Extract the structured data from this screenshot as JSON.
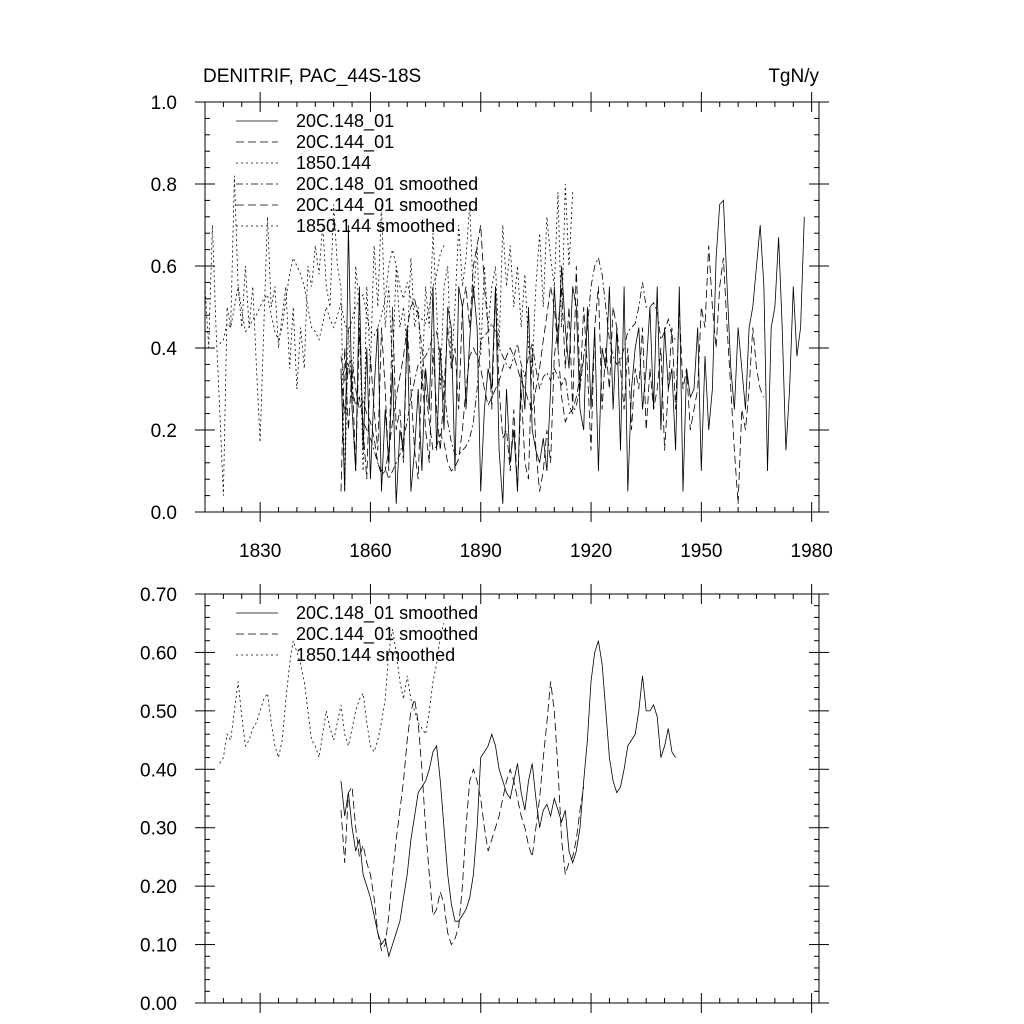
{
  "chart_data": [
    {
      "type": "line",
      "title": "DENITRIF, PAC_44S-18S",
      "units": "TgN/y",
      "xlim": [
        1815,
        1982
      ],
      "ylim": [
        0.0,
        1.0
      ],
      "x_ticks": [
        1830,
        1860,
        1890,
        1920,
        1950,
        1980
      ],
      "x_tick_labels": [
        "1830",
        "1860",
        "1890",
        "1920",
        "1950",
        "1980"
      ],
      "y_ticks": [
        0.0,
        0.2,
        0.4,
        0.6,
        0.8,
        1.0
      ],
      "y_tick_labels": [
        "0.0",
        "0.2",
        "0.4",
        "0.6",
        "0.8",
        "1.0"
      ],
      "legend": [
        "20C.148_01",
        "20C.144_01",
        "1850.144",
        "20C.148_01 smoothed",
        "20C.144_01 smoothed",
        "1850.144 smoothed"
      ],
      "series": [
        {
          "name": "20C.148_01",
          "style": "solid",
          "start_year": 1852,
          "values": [
            0.35,
            0.05,
            0.7,
            0.25,
            0.1,
            0.55,
            0.15,
            0.4,
            0.08,
            0.3,
            0.45,
            0.05,
            0.25,
            0.12,
            0.35,
            0.02,
            0.2,
            0.15,
            0.45,
            0.05,
            0.15,
            0.3,
            0.1,
            0.35,
            0.25,
            0.55,
            0.15,
            0.4,
            0.2,
            0.5,
            0.45,
            0.1,
            0.55,
            0.5,
            0.25,
            0.42,
            0.55,
            0.45,
            0.05,
            0.25,
            0.35,
            0.3,
            0.55,
            0.15,
            0.02,
            0.3,
            0.12,
            0.2,
            0.05,
            0.35,
            0.25,
            0.5,
            0.2,
            0.15,
            0.12,
            0.18,
            0.1,
            0.3,
            0.55,
            0.4,
            0.6,
            0.45,
            0.35,
            0.55,
            0.5,
            0.25,
            0.2,
            0.5,
            0.25,
            0.45,
            0.1,
            0.4,
            0.35,
            0.55,
            0.25,
            0.45,
            0.15,
            0.55,
            0.05,
            0.3,
            0.4,
            0.45,
            0.25,
            0.35,
            0.5,
            0.25,
            0.55,
            0.2,
            0.45,
            0.3,
            0.35,
            0.15,
            0.55,
            0.05,
            0.35,
            0.28,
            0.3,
            0.45,
            0.1,
            0.38,
            0.2,
            0.3,
            0.62,
            0.75,
            0.76,
            0.55,
            0.35,
            0.25,
            0.45,
            0.35,
            0.25,
            0.45,
            0.5,
            0.6,
            0.7,
            0.55,
            0.1,
            0.45,
            0.5,
            0.67,
            0.45,
            0.15,
            0.3,
            0.55,
            0.38,
            0.45,
            0.72
          ]
        },
        {
          "name": "20C.144_01",
          "style": "dashed",
          "start_year": 1852,
          "values": [
            0.05,
            0.4,
            0.2,
            0.35,
            0.1,
            0.45,
            0.2,
            0.08,
            0.38,
            0.25,
            0.15,
            0.45,
            0.3,
            0.1,
            0.5,
            0.2,
            0.25,
            0.12,
            0.45,
            0.3,
            0.15,
            0.08,
            0.35,
            0.2,
            0.12,
            0.4,
            0.25,
            0.15,
            0.3,
            0.45,
            0.35,
            0.4,
            0.25,
            0.5,
            0.55,
            0.45,
            0.6,
            0.65,
            0.7,
            0.55,
            0.45,
            0.25,
            0.55,
            0.3,
            0.18,
            0.2,
            0.1,
            0.25,
            0.05,
            0.3,
            0.12,
            0.08,
            0.4,
            0.15,
            0.05,
            0.1,
            0.2,
            0.12,
            0.38,
            0.45,
            0.55,
            0.35,
            0.5,
            0.25,
            0.6,
            0.3,
            0.5,
            0.35,
            0.15,
            0.45,
            0.55,
            0.25,
            0.4,
            0.3,
            0.5,
            0.45,
            0.35,
            0.25,
            0.4,
            0.2,
            0.35,
            0.3,
            0.45,
            0.2,
            0.35,
            0.25,
            0.3,
            0.4,
            0.15,
            0.3,
            0.45,
            0.25,
            0.5,
            0.3,
            0.35,
            0.2,
            0.25,
            0.3,
            0.5,
            0.45,
            0.65,
            0.5,
            0.4,
            0.55,
            0.62,
            0.45,
            0.3,
            0.15,
            0.02,
            0.25,
            0.2,
            0.3,
            0.45,
            0.35,
            0.3,
            0.28
          ]
        },
        {
          "name": "1850.144",
          "style": "dotted",
          "start_year": 1815,
          "values": [
            0.55,
            0.4,
            0.7,
            0.45,
            0.25,
            0.04,
            0.5,
            0.45,
            0.82,
            0.55,
            0.45,
            0.6,
            0.45,
            0.55,
            0.35,
            0.17,
            0.45,
            0.72,
            0.5,
            0.55,
            0.4,
            0.48,
            0.55,
            0.35,
            0.5,
            0.3,
            0.45,
            0.35,
            0.6,
            0.55,
            0.65,
            0.58,
            0.7,
            0.55,
            0.5,
            0.75,
            0.6,
            0.55,
            0.05,
            0.45,
            0.25,
            0.6,
            0.5,
            0.1,
            0.55,
            0.35,
            0.65,
            0.5,
            0.75,
            0.45,
            0.55,
            0.35,
            0.6,
            0.45,
            0.5,
            0.4,
            0.62,
            0.45,
            0.5,
            0.3,
            0.55,
            0.45,
            0.68,
            0.5,
            0.3,
            0.55,
            0.6,
            0.35,
            0.5,
            0.7,
            0.55,
            0.62,
            0.75,
            0.52,
            0.65,
            0.38,
            0.6,
            0.45,
            0.55,
            0.6,
            0.4,
            0.7,
            0.55,
            0.65,
            0.5,
            0.6,
            0.45,
            0.58,
            0.4,
            0.35,
            0.55,
            0.68,
            0.5,
            0.72,
            0.62,
            0.55,
            0.78,
            0.45,
            0.8,
            0.6,
            0.78
          ]
        },
        {
          "name": "20C.148_01 smoothed",
          "style": "dashdot",
          "start_year": 1852,
          "values": [
            0.38,
            0.32,
            0.36,
            0.3,
            0.26,
            0.28,
            0.22,
            0.2,
            0.18,
            0.15,
            0.12,
            0.1,
            0.11,
            0.08,
            0.1,
            0.12,
            0.14,
            0.18,
            0.22,
            0.28,
            0.32,
            0.36,
            0.37,
            0.38,
            0.4,
            0.43,
            0.44,
            0.38,
            0.3,
            0.22,
            0.17,
            0.14,
            0.14,
            0.15,
            0.16,
            0.18,
            0.22,
            0.3,
            0.42,
            0.43,
            0.44,
            0.46,
            0.44,
            0.4,
            0.38,
            0.36,
            0.35,
            0.38,
            0.41,
            0.36,
            0.33,
            0.38,
            0.41,
            0.35,
            0.3,
            0.33,
            0.34,
            0.32,
            0.35,
            0.33,
            0.31,
            0.33,
            0.26,
            0.24,
            0.26,
            0.3,
            0.38,
            0.45,
            0.55,
            0.6,
            0.62,
            0.58,
            0.5,
            0.42,
            0.38,
            0.36,
            0.37,
            0.4,
            0.44,
            0.45,
            0.46,
            0.5,
            0.56,
            0.5,
            0.5,
            0.51,
            0.49,
            0.42,
            0.44,
            0.47,
            0.43,
            0.42
          ]
        },
        {
          "name": "20C.144_01 smoothed",
          "style": "dashed",
          "start_year": 1852,
          "values": [
            0.33,
            0.24,
            0.36,
            0.37,
            0.3,
            0.25,
            0.27,
            0.24,
            0.22,
            0.18,
            0.12,
            0.09,
            0.1,
            0.15,
            0.22,
            0.28,
            0.33,
            0.38,
            0.45,
            0.5,
            0.52,
            0.48,
            0.4,
            0.3,
            0.22,
            0.15,
            0.16,
            0.19,
            0.17,
            0.12,
            0.1,
            0.11,
            0.13,
            0.2,
            0.3,
            0.38,
            0.4,
            0.38,
            0.35,
            0.3,
            0.26,
            0.28,
            0.3,
            0.32,
            0.35,
            0.38,
            0.4,
            0.38,
            0.35,
            0.32,
            0.3,
            0.27,
            0.25,
            0.3,
            0.35,
            0.42,
            0.48,
            0.55,
            0.5,
            0.4,
            0.28,
            0.22,
            0.24,
            0.25,
            0.28,
            0.33,
            0.37
          ]
        },
        {
          "name": "1850.144 smoothed",
          "style": "dotted",
          "start_year": 1819,
          "values": [
            0.41,
            0.42,
            0.46,
            0.45,
            0.5,
            0.55,
            0.49,
            0.44,
            0.45,
            0.47,
            0.48,
            0.5,
            0.52,
            0.53,
            0.48,
            0.44,
            0.42,
            0.45,
            0.52,
            0.58,
            0.62,
            0.6,
            0.58,
            0.55,
            0.5,
            0.45,
            0.44,
            0.42,
            0.46,
            0.5,
            0.47,
            0.45,
            0.48,
            0.51,
            0.46,
            0.44,
            0.47,
            0.5,
            0.52,
            0.53,
            0.48,
            0.44,
            0.43,
            0.45,
            0.48,
            0.52,
            0.6,
            0.64,
            0.6,
            0.55,
            0.52,
            0.56,
            0.52,
            0.5,
            0.48,
            0.47,
            0.46,
            0.5,
            0.55,
            0.58,
            0.63,
            0.65
          ]
        }
      ]
    },
    {
      "type": "line",
      "xlim": [
        1815,
        1982
      ],
      "ylim": [
        0.0,
        0.7
      ],
      "x_ticks": [
        1830,
        1860,
        1890,
        1920,
        1950,
        1980
      ],
      "y_ticks": [
        0.0,
        0.1,
        0.2,
        0.3,
        0.4,
        0.5,
        0.6,
        0.7
      ],
      "y_tick_labels": [
        "0.00",
        "0.10",
        "0.20",
        "0.30",
        "0.40",
        "0.50",
        "0.60",
        "0.70"
      ],
      "legend": [
        "20C.148_01 smoothed",
        "20C.144_01 smoothed",
        "1850.144 smoothed"
      ],
      "series": [
        {
          "name": "20C.148_01 smoothed",
          "style": "solid",
          "start_year": 1852,
          "values": [
            0.38,
            0.32,
            0.36,
            0.3,
            0.26,
            0.28,
            0.22,
            0.2,
            0.18,
            0.15,
            0.12,
            0.1,
            0.11,
            0.08,
            0.1,
            0.12,
            0.14,
            0.18,
            0.22,
            0.28,
            0.32,
            0.36,
            0.37,
            0.38,
            0.4,
            0.43,
            0.44,
            0.38,
            0.3,
            0.22,
            0.17,
            0.14,
            0.14,
            0.15,
            0.16,
            0.18,
            0.22,
            0.3,
            0.42,
            0.43,
            0.44,
            0.46,
            0.44,
            0.4,
            0.38,
            0.36,
            0.35,
            0.38,
            0.41,
            0.36,
            0.33,
            0.38,
            0.41,
            0.35,
            0.3,
            0.33,
            0.34,
            0.32,
            0.35,
            0.33,
            0.31,
            0.33,
            0.26,
            0.24,
            0.26,
            0.3,
            0.38,
            0.45,
            0.55,
            0.6,
            0.62,
            0.58,
            0.5,
            0.42,
            0.38,
            0.36,
            0.37,
            0.4,
            0.44,
            0.45,
            0.46,
            0.5,
            0.56,
            0.5,
            0.5,
            0.51,
            0.49,
            0.42,
            0.44,
            0.47,
            0.43,
            0.42
          ]
        },
        {
          "name": "20C.144_01 smoothed",
          "style": "dashed",
          "start_year": 1852,
          "values": [
            0.33,
            0.24,
            0.36,
            0.37,
            0.3,
            0.25,
            0.27,
            0.24,
            0.22,
            0.18,
            0.12,
            0.09,
            0.1,
            0.15,
            0.22,
            0.28,
            0.33,
            0.38,
            0.45,
            0.5,
            0.52,
            0.48,
            0.4,
            0.3,
            0.22,
            0.15,
            0.16,
            0.19,
            0.17,
            0.12,
            0.1,
            0.11,
            0.13,
            0.2,
            0.3,
            0.38,
            0.4,
            0.38,
            0.35,
            0.3,
            0.26,
            0.28,
            0.3,
            0.32,
            0.35,
            0.38,
            0.4,
            0.38,
            0.35,
            0.32,
            0.3,
            0.27,
            0.25,
            0.3,
            0.35,
            0.42,
            0.48,
            0.55,
            0.5,
            0.4,
            0.28,
            0.22,
            0.24,
            0.25,
            0.28,
            0.33,
            0.37
          ]
        },
        {
          "name": "1850.144 smoothed",
          "style": "dotted",
          "start_year": 1819,
          "values": [
            0.41,
            0.42,
            0.46,
            0.45,
            0.5,
            0.55,
            0.49,
            0.44,
            0.45,
            0.47,
            0.48,
            0.5,
            0.52,
            0.53,
            0.48,
            0.44,
            0.42,
            0.45,
            0.52,
            0.58,
            0.62,
            0.6,
            0.58,
            0.55,
            0.5,
            0.45,
            0.44,
            0.42,
            0.46,
            0.5,
            0.47,
            0.45,
            0.48,
            0.51,
            0.46,
            0.44,
            0.47,
            0.5,
            0.52,
            0.53,
            0.48,
            0.44,
            0.43,
            0.45,
            0.48,
            0.52,
            0.6,
            0.64,
            0.6,
            0.55,
            0.52,
            0.56,
            0.52,
            0.5,
            0.48,
            0.47,
            0.46,
            0.5,
            0.55,
            0.58,
            0.63,
            0.65
          ]
        }
      ]
    }
  ]
}
